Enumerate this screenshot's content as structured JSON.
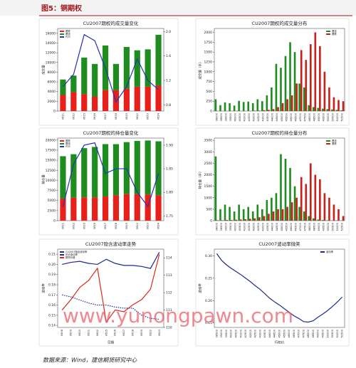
{
  "header": {
    "title": "图5：铜期权"
  },
  "source": "数据来源：Wind，建信期货研究中心",
  "watermark": "www.yunongpawn.com",
  "chart_data": [
    {
      "type": "bar",
      "stacked": true,
      "title": "CU2007期权的成交量变化",
      "ylabel": "成交量",
      "categories": [
        "0611",
        "0612",
        "0615",
        "0616",
        "0617",
        "0618",
        "0619",
        "0622",
        "0623",
        "0624"
      ],
      "series": [
        {
          "name": "看跌",
          "color": "#e8201a",
          "values": [
            3300,
            3900,
            3500,
            3000,
            4300,
            4300,
            4600,
            5000,
            5000,
            5200
          ]
        },
        {
          "name": "看涨",
          "color": "#1f8c1f",
          "values": [
            3200,
            3400,
            7500,
            6700,
            9200,
            5400,
            8600,
            7500,
            7700,
            10500
          ]
        },
        {
          "name": "PCR",
          "color": "#2433b8",
          "kind": "line",
          "axis": "y2",
          "values": [
            1.1,
            1.3,
            1.95,
            1.85,
            1.4,
            0.85,
            1.1,
            1.55,
            1.2,
            1.05
          ]
        }
      ],
      "ylim": [
        0,
        17000
      ],
      "yticks": [
        0,
        2000,
        4000,
        6000,
        8000,
        10000,
        12000,
        14000,
        16000
      ],
      "y2lim": [
        0.7,
        2.05
      ],
      "y2ticks": [
        0.8,
        1.2,
        1.6,
        {
          "value": 2,
          "label": "2.0"
        }
      ]
    },
    {
      "type": "bar",
      "stacked": false,
      "title": "CU2007期权的成交量分布",
      "ylabel": "成交量（手）",
      "categories": [
        "38000",
        "38500",
        "39000",
        "39500",
        "40000",
        "40500",
        "41000",
        "41500",
        "42000",
        "42500",
        "43000",
        "43500",
        "44000",
        "44500",
        "45000",
        "45500",
        "46000",
        "46500",
        "47000",
        "47500",
        "48000",
        "48500",
        "49000",
        "49500",
        "50000",
        "50500",
        "51000",
        "51500"
      ],
      "series": [
        {
          "name": "看涨",
          "color": "#1f8c1f",
          "values": [
            300,
            150,
            220,
            200,
            140,
            260,
            230,
            240,
            200,
            300,
            250,
            400,
            600,
            1200,
            1100,
            1400,
            1750,
            1500,
            700,
            600,
            150,
            100,
            80,
            60,
            50,
            40,
            30,
            20
          ]
        },
        {
          "name": "看跌",
          "color": "#c8201a",
          "values": [
            0,
            0,
            0,
            0,
            0,
            0,
            0,
            0,
            10,
            10,
            20,
            30,
            50,
            100,
            200,
            300,
            400,
            700,
            1550,
            1300,
            1700,
            2000,
            1650,
            1000,
            600,
            350,
            280,
            250
          ]
        }
      ],
      "ylim": [
        0,
        2100
      ],
      "yticks": [
        0,
        250,
        500,
        750,
        1000,
        1250,
        1500,
        1750,
        2000
      ]
    },
    {
      "type": "bar",
      "stacked": true,
      "title": "CU2007期权的持仓量变化",
      "ylabel": "持仓量",
      "categories": [
        "0611",
        "0612",
        "0615",
        "0616",
        "0617",
        "0618",
        "0619",
        "0622",
        "0623",
        "0624"
      ],
      "series": [
        {
          "name": "看跌",
          "color": "#e8201a",
          "values": [
            5500,
            5700,
            5800,
            5800,
            6000,
            6300,
            6600,
            6600,
            6500,
            6300
          ]
        },
        {
          "name": "看涨",
          "color": "#1f8c1f",
          "values": [
            10500,
            10800,
            12200,
            12500,
            13000,
            12700,
            12900,
            13200,
            13400,
            13400
          ]
        },
        {
          "name": "PCR",
          "color": "#2433b8",
          "kind": "line",
          "axis": "y2",
          "values": [
            1.77,
            1.86,
            1.9,
            1.905,
            1.84,
            1.85,
            1.85,
            1.8,
            1.77,
            1.84
          ]
        }
      ],
      "ylim": [
        0,
        20500
      ],
      "yticks": [
        0,
        2500,
        5000,
        7500,
        10000,
        12500,
        15000,
        17500,
        20000
      ],
      "y2lim": [
        1.74,
        1.915
      ],
      "y2ticks": [
        1.75,
        {
          "value": 1.8,
          "label": "1.80"
        },
        1.85,
        {
          "value": 1.9,
          "label": "1.90"
        }
      ]
    },
    {
      "type": "bar",
      "stacked": false,
      "title": "CU2007期权的持仓量分布",
      "ylabel": "持仓量（手）",
      "categories": [
        "38000",
        "38500",
        "39000",
        "39500",
        "40000",
        "40500",
        "41000",
        "41500",
        "42000",
        "42500",
        "43000",
        "43500",
        "44000",
        "44500",
        "45000",
        "45500",
        "46000",
        "46500",
        "47000",
        "47500",
        "48000",
        "48500",
        "49000",
        "49500",
        "50000",
        "50500",
        "51000",
        "51500"
      ],
      "series": [
        {
          "name": "看涨",
          "color": "#1f8c1f",
          "values": [
            2800,
            500,
            700,
            600,
            400,
            700,
            500,
            600,
            400,
            700,
            500,
            900,
            1000,
            1200,
            2900,
            2700,
            2300,
            1500,
            600,
            400,
            200,
            100,
            50,
            30,
            20,
            10,
            10,
            10
          ]
        },
        {
          "name": "看跌",
          "color": "#c8201a",
          "values": [
            20,
            20,
            30,
            30,
            40,
            50,
            60,
            80,
            100,
            150,
            200,
            300,
            400,
            500,
            500,
            600,
            800,
            1000,
            1900,
            1600,
            2500,
            2000,
            1800,
            1200,
            1000,
            700,
            500,
            200
          ]
        }
      ],
      "ylim": [
        0,
        3600
      ],
      "yticks": [
        0,
        500,
        1000,
        1500,
        2000,
        2500,
        3000,
        3500
      ]
    },
    {
      "type": "line",
      "title": "CU2007隐含波动率走势",
      "ylabel": "波动率",
      "xlabel": "日期",
      "categories": [
        "0608",
        "0609",
        "0610",
        "0611",
        "0612",
        "0615",
        "0616",
        "0617",
        "0618",
        "0619",
        "0622",
        "0623"
      ],
      "series": [
        {
          "name": "CU2007隐含波动率",
          "color": "#1c2a8c",
          "values": [
            0.2,
            0.202,
            0.203,
            0.201,
            0.2,
            0.205,
            0.201,
            0.199,
            0.199,
            0.198,
            0.196,
            0.212
          ]
        },
        {
          "name": "历史波动率",
          "color": "#1c2a8c",
          "dash": true,
          "values": [
            0.17,
            0.168,
            0.165,
            0.162,
            0.16,
            0.16,
            0.158,
            0.157,
            0.157,
            0.15,
            0.147,
            0.146
          ]
        },
        {
          "name": "期货价格",
          "color": "#d62a1a",
          "axis": "y2",
          "values": [
            111,
            111.6,
            112.3,
            112.7,
            113.4,
            110.3,
            111,
            110.9,
            111.3,
            111.6,
            112.2,
            114.2
          ]
        }
      ],
      "ylim": [
        0.138,
        0.215
      ],
      "yticks": [
        0.14,
        0.15,
        0.16,
        0.17,
        0.18,
        0.19,
        {
          "value": 0.2,
          "label": "0.20"
        },
        0.21
      ],
      "y2lim": [
        110,
        114.5
      ],
      "y2ticks": [
        110,
        111,
        112,
        113,
        114
      ]
    },
    {
      "type": "line",
      "title": "CU2007波动率微笑",
      "ylabel": "波动率",
      "xlabel": "行权价",
      "categories": [
        "38500",
        "39000",
        "39500",
        "40000",
        "40500",
        "41000",
        "41500",
        "42000",
        "42500",
        "43000",
        "43500",
        "44000",
        "44500",
        "45000",
        "45500",
        "46000",
        "46500",
        "47000",
        "47500",
        "48000",
        "48500",
        "49000",
        "49500",
        "50000",
        "50500",
        "51000",
        "51500"
      ],
      "series": [
        {
          "name": "波动率",
          "color": "#1c2a8c",
          "values": [
            0.305,
            0.29,
            0.28,
            0.272,
            0.265,
            0.258,
            0.25,
            0.242,
            0.233,
            0.225,
            0.215,
            0.205,
            0.197,
            0.19,
            0.182,
            0.174,
            0.166,
            0.16,
            0.153,
            0.152,
            0.155,
            0.163,
            0.17,
            0.178,
            0.187,
            0.197,
            0.208
          ]
        }
      ],
      "ylim": [
        0.14,
        0.315
      ],
      "yticks": [
        0.15,
        {
          "value": 0.2,
          "label": "0.20"
        },
        0.25,
        {
          "value": 0.3,
          "label": "0.30"
        }
      ]
    }
  ]
}
